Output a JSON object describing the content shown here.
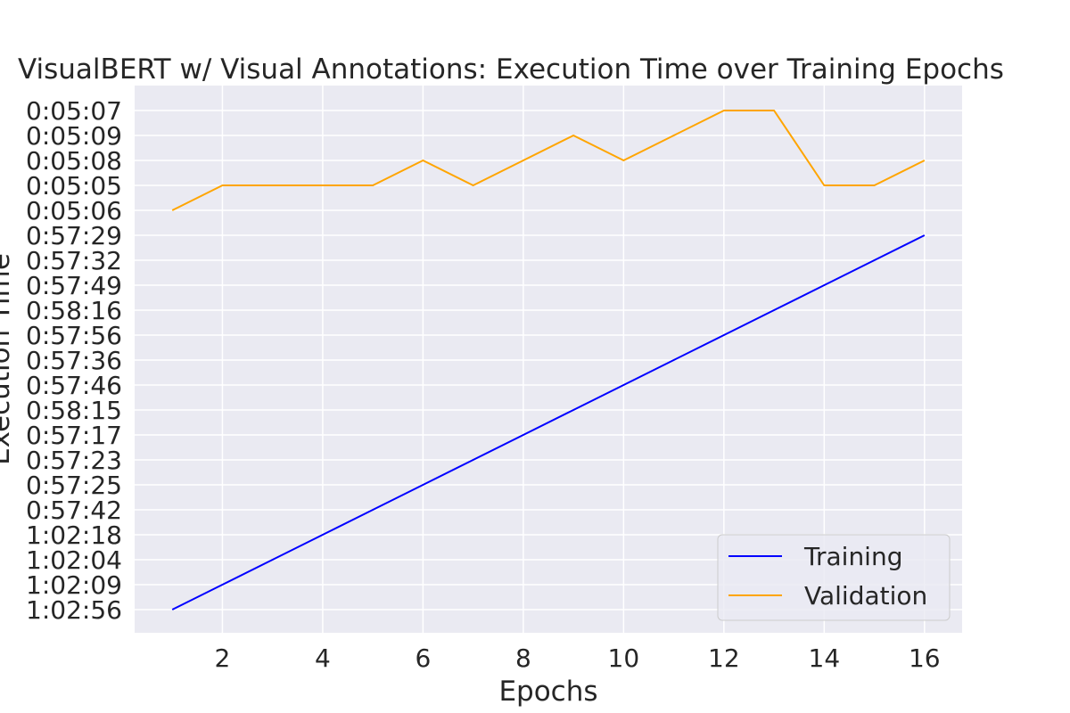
{
  "chart_data": {
    "type": "line",
    "title": "VisualBERT w/ Visual Annotations: Execution Time over Training Epochs",
    "xlabel": "Epochs",
    "ylabel": "Execution Time",
    "x": [
      1,
      2,
      3,
      4,
      5,
      6,
      7,
      8,
      9,
      10,
      11,
      12,
      13,
      14,
      15,
      16
    ],
    "x_ticks": [
      2,
      4,
      6,
      8,
      10,
      12,
      14,
      16
    ],
    "xlim": [
      0.25,
      16.75
    ],
    "y_categories": [
      "1:02:56",
      "1:02:09",
      "1:02:04",
      "1:02:18",
      "0:57:42",
      "0:57:25",
      "0:57:23",
      "0:57:17",
      "0:58:15",
      "0:57:46",
      "0:57:36",
      "0:57:56",
      "0:58:16",
      "0:57:49",
      "0:57:32",
      "0:57:29",
      "0:05:06",
      "0:05:05",
      "0:05:08",
      "0:05:09",
      "0:05:07"
    ],
    "y_scale": "categorical",
    "series": [
      {
        "name": "Training",
        "color": "#0000ff",
        "values": [
          "1:02:56",
          "1:02:09",
          "1:02:04",
          "1:02:18",
          "0:57:42",
          "0:57:25",
          "0:57:23",
          "0:57:17",
          "0:58:15",
          "0:57:46",
          "0:57:36",
          "0:57:56",
          "0:58:16",
          "0:57:49",
          "0:57:32",
          "0:57:29"
        ]
      },
      {
        "name": "Validation",
        "color": "#ffa500",
        "values": [
          "0:05:06",
          "0:05:05",
          "0:05:05",
          "0:05:05",
          "0:05:05",
          "0:05:08",
          "0:05:05",
          "0:05:08",
          "0:05:09",
          "0:05:08",
          "0:05:09",
          "0:05:07",
          "0:05:07",
          "0:05:05",
          "0:05:05",
          "0:05:08"
        ]
      }
    ],
    "grid": true,
    "legend_position": "lower-right",
    "colors": {
      "plot_background": "#eaeaf2",
      "grid": "#ffffff",
      "text": "#262626"
    }
  }
}
